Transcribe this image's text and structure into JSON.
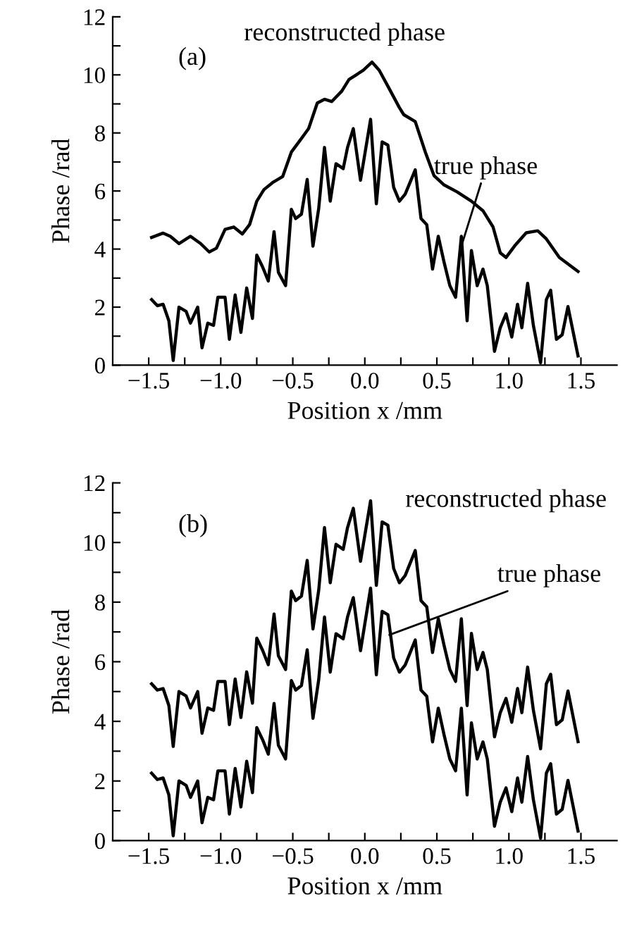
{
  "chart_data": [
    {
      "type": "line",
      "xlabel": "Position x /mm",
      "ylabel": "Phase /rad",
      "xlim": [
        -1.75,
        1.75
      ],
      "ylim": [
        0,
        12
      ],
      "xticks": [
        {
          "value": -1.5,
          "label": "−1.5"
        },
        {
          "value": -1.25,
          "label": null
        },
        {
          "value": -1.0,
          "label": "−1.0"
        },
        {
          "value": -0.75,
          "label": null
        },
        {
          "value": -0.5,
          "label": "−0.5"
        },
        {
          "value": -0.25,
          "label": null
        },
        {
          "value": 0,
          "label": "0.0"
        },
        {
          "value": 0.25,
          "label": null
        },
        {
          "value": 0.5,
          "label": "0.5"
        },
        {
          "value": 0.75,
          "label": null
        },
        {
          "value": 1.0,
          "label": "1.0"
        },
        {
          "value": 1.25,
          "label": null
        },
        {
          "value": 1.5,
          "label": "1.5"
        }
      ],
      "yticks": [
        0,
        {
          "value": 1,
          "label": null
        },
        2,
        {
          "value": 3,
          "label": null
        },
        4,
        {
          "value": 5,
          "label": null
        },
        6,
        {
          "value": 7,
          "label": null
        },
        8,
        {
          "value": 9,
          "label": null
        },
        10,
        {
          "value": 11,
          "label": null
        },
        12
      ],
      "grid": false,
      "legend": false,
      "marker": "none",
      "line_style": "solid",
      "annotations": [
        "(a)",
        "reconstructed phase",
        {
          "text": "true phase",
          "x": 0.67,
          "y": 4.1
        }
      ],
      "series": [
        {
          "color": "#000000",
          "x": [
            -1.48,
            -1.4,
            -1.35,
            -1.29,
            -1.21,
            -1.14,
            -1.08,
            -1.03,
            -0.97,
            -0.91,
            -0.85,
            -0.8,
            -0.75,
            -0.7,
            -0.64,
            -0.57,
            -0.51,
            -0.45,
            -0.39,
            -0.33,
            -0.28,
            -0.23,
            -0.16,
            -0.11,
            -0.06,
            -0.01,
            0.05,
            0.1,
            0.17,
            0.24,
            0.27,
            0.35,
            0.42,
            0.48,
            0.55,
            0.64,
            0.74,
            0.82,
            0.89,
            0.94,
            0.98,
            1.04,
            1.12,
            1.2,
            1.26,
            1.35,
            1.48
          ],
          "values": [
            4.4,
            4.55,
            4.44,
            4.19,
            4.44,
            4.19,
            3.9,
            4.03,
            4.68,
            4.76,
            4.52,
            4.84,
            5.65,
            6.05,
            6.29,
            6.5,
            7.34,
            7.74,
            8.15,
            9.03,
            9.16,
            9.08,
            9.44,
            9.84,
            10.0,
            10.16,
            10.44,
            10.16,
            9.52,
            8.87,
            8.63,
            8.39,
            7.34,
            6.53,
            6.21,
            5.97,
            5.65,
            5.32,
            4.76,
            3.87,
            3.71,
            4.11,
            4.56,
            4.63,
            4.35,
            3.71,
            3.23
          ]
        },
        {
          "color": "#000000",
          "x": [
            -1.48,
            -1.44,
            -1.4,
            -1.36,
            -1.33,
            -1.29,
            -1.24,
            -1.21,
            -1.16,
            -1.13,
            -1.09,
            -1.05,
            -1.02,
            -0.97,
            -0.94,
            -0.9,
            -0.86,
            -0.82,
            -0.78,
            -0.75,
            -0.71,
            -0.67,
            -0.63,
            -0.6,
            -0.55,
            -0.51,
            -0.48,
            -0.44,
            -0.4,
            -0.36,
            -0.32,
            -0.28,
            -0.24,
            -0.2,
            -0.15,
            -0.12,
            -0.08,
            -0.03,
            0.04,
            0.08,
            0.12,
            0.16,
            0.2,
            0.24,
            0.28,
            0.35,
            0.39,
            0.43,
            0.47,
            0.51,
            0.55,
            0.59,
            0.63,
            0.67,
            0.71,
            0.74,
            0.78,
            0.82,
            0.85,
            0.9,
            0.94,
            0.98,
            1.02,
            1.06,
            1.09,
            1.13,
            1.17,
            1.22,
            1.26,
            1.29,
            1.33,
            1.37,
            1.41,
            1.48
          ],
          "values": [
            2.26,
            2.05,
            2.1,
            1.53,
            0.16,
            2.0,
            1.85,
            1.45,
            2.0,
            0.6,
            1.45,
            1.37,
            2.34,
            2.34,
            0.89,
            2.42,
            1.13,
            2.66,
            1.61,
            3.79,
            3.39,
            2.9,
            4.6,
            3.2,
            2.74,
            5.37,
            5.05,
            5.2,
            6.4,
            4.1,
            5.4,
            7.5,
            5.65,
            6.94,
            6.77,
            7.5,
            8.15,
            6.37,
            8.47,
            5.56,
            7.69,
            7.58,
            6.13,
            5.65,
            5.89,
            6.73,
            5.05,
            4.84,
            3.31,
            4.44,
            3.55,
            2.74,
            2.34,
            4.44,
            1.53,
            3.95,
            2.74,
            3.31,
            2.74,
            0.48,
            1.29,
            1.77,
            0.97,
            2.1,
            1.29,
            2.82,
            1.37,
            0.08,
            2.26,
            2.58,
            0.89,
            1.05,
            2.02,
            0.32
          ]
        }
      ]
    },
    {
      "type": "line",
      "xlabel": "Position x /mm",
      "ylabel": "Phase /rad",
      "xlim": [
        -1.75,
        1.75
      ],
      "ylim": [
        0,
        12
      ],
      "xticks": [
        {
          "value": -1.5,
          "label": "−1.5"
        },
        {
          "value": -1.25,
          "label": null
        },
        {
          "value": -1.0,
          "label": "−1.0"
        },
        {
          "value": -0.75,
          "label": null
        },
        {
          "value": -0.5,
          "label": "−0.5"
        },
        {
          "value": -0.25,
          "label": null
        },
        {
          "value": 0,
          "label": "0.0"
        },
        {
          "value": 0.25,
          "label": null
        },
        {
          "value": 0.5,
          "label": "0.5"
        },
        {
          "value": 0.75,
          "label": null
        },
        {
          "value": 1.0,
          "label": "1.0"
        },
        {
          "value": 1.25,
          "label": null
        },
        {
          "value": 1.5,
          "label": "1.5"
        }
      ],
      "yticks": [
        0,
        {
          "value": 1,
          "label": null
        },
        2,
        {
          "value": 3,
          "label": null
        },
        4,
        {
          "value": 5,
          "label": null
        },
        6,
        {
          "value": 7,
          "label": null
        },
        8,
        {
          "value": 9,
          "label": null
        },
        10,
        {
          "value": 11,
          "label": null
        },
        12
      ],
      "grid": false,
      "legend": false,
      "marker": "none",
      "line_style": "solid",
      "annotations": [
        "(b)",
        "reconstructed phase",
        {
          "text": "true phase",
          "x": 0.17,
          "y": 6.9
        }
      ],
      "series": [
        {
          "color": "#000000",
          "x": [
            -1.48,
            -1.44,
            -1.4,
            -1.36,
            -1.33,
            -1.29,
            -1.24,
            -1.21,
            -1.16,
            -1.13,
            -1.09,
            -1.05,
            -1.02,
            -0.97,
            -0.94,
            -0.9,
            -0.86,
            -0.82,
            -0.78,
            -0.75,
            -0.71,
            -0.67,
            -0.63,
            -0.6,
            -0.55,
            -0.51,
            -0.48,
            -0.44,
            -0.4,
            -0.36,
            -0.32,
            -0.28,
            -0.24,
            -0.2,
            -0.15,
            -0.12,
            -0.08,
            -0.03,
            0.04,
            0.08,
            0.12,
            0.16,
            0.2,
            0.24,
            0.28,
            0.35,
            0.39,
            0.43,
            0.47,
            0.51,
            0.55,
            0.59,
            0.63,
            0.67,
            0.71,
            0.74,
            0.78,
            0.82,
            0.85,
            0.9,
            0.94,
            0.98,
            1.02,
            1.06,
            1.09,
            1.13,
            1.17,
            1.22,
            1.26,
            1.29,
            1.33,
            1.37,
            1.41,
            1.48
          ],
          "values": [
            5.26,
            5.05,
            5.1,
            4.53,
            3.16,
            5.0,
            4.85,
            4.45,
            5.0,
            3.6,
            4.45,
            4.37,
            5.34,
            5.34,
            3.89,
            5.42,
            4.13,
            5.66,
            4.61,
            6.79,
            6.39,
            5.9,
            7.6,
            6.2,
            5.74,
            8.37,
            8.05,
            8.2,
            9.4,
            7.1,
            8.4,
            10.5,
            8.65,
            9.94,
            9.77,
            10.5,
            11.15,
            9.37,
            11.4,
            8.56,
            10.69,
            10.58,
            9.13,
            8.65,
            8.89,
            9.73,
            8.05,
            7.84,
            6.31,
            7.44,
            6.55,
            5.74,
            5.34,
            7.44,
            4.53,
            6.95,
            5.74,
            6.31,
            5.74,
            3.48,
            4.29,
            4.77,
            3.97,
            5.1,
            4.29,
            5.82,
            4.37,
            3.08,
            5.26,
            5.58,
            3.89,
            4.05,
            5.02,
            3.32
          ]
        },
        {
          "color": "#000000",
          "x": [
            -1.48,
            -1.44,
            -1.4,
            -1.36,
            -1.33,
            -1.29,
            -1.24,
            -1.21,
            -1.16,
            -1.13,
            -1.09,
            -1.05,
            -1.02,
            -0.97,
            -0.94,
            -0.9,
            -0.86,
            -0.82,
            -0.78,
            -0.75,
            -0.71,
            -0.67,
            -0.63,
            -0.6,
            -0.55,
            -0.51,
            -0.48,
            -0.44,
            -0.4,
            -0.36,
            -0.32,
            -0.28,
            -0.24,
            -0.2,
            -0.15,
            -0.12,
            -0.08,
            -0.03,
            0.04,
            0.08,
            0.12,
            0.16,
            0.2,
            0.24,
            0.28,
            0.35,
            0.39,
            0.43,
            0.47,
            0.51,
            0.55,
            0.59,
            0.63,
            0.67,
            0.71,
            0.74,
            0.78,
            0.82,
            0.85,
            0.9,
            0.94,
            0.98,
            1.02,
            1.06,
            1.09,
            1.13,
            1.17,
            1.22,
            1.26,
            1.29,
            1.33,
            1.37,
            1.41,
            1.48
          ],
          "values": [
            2.26,
            2.05,
            2.1,
            1.53,
            0.16,
            2.0,
            1.85,
            1.45,
            2.0,
            0.6,
            1.45,
            1.37,
            2.34,
            2.34,
            0.89,
            2.42,
            1.13,
            2.66,
            1.61,
            3.79,
            3.39,
            2.9,
            4.6,
            3.2,
            2.74,
            5.37,
            5.05,
            5.2,
            6.4,
            4.1,
            5.4,
            7.5,
            5.65,
            6.94,
            6.77,
            7.5,
            8.15,
            6.37,
            8.47,
            5.56,
            7.69,
            7.58,
            6.13,
            5.65,
            5.89,
            6.73,
            5.05,
            4.84,
            3.31,
            4.44,
            3.55,
            2.74,
            2.34,
            4.44,
            1.53,
            3.95,
            2.74,
            3.31,
            2.74,
            0.48,
            1.29,
            1.77,
            0.97,
            2.1,
            1.29,
            2.82,
            1.37,
            0.08,
            2.26,
            2.58,
            0.89,
            1.05,
            2.02,
            0.32
          ]
        }
      ]
    }
  ]
}
